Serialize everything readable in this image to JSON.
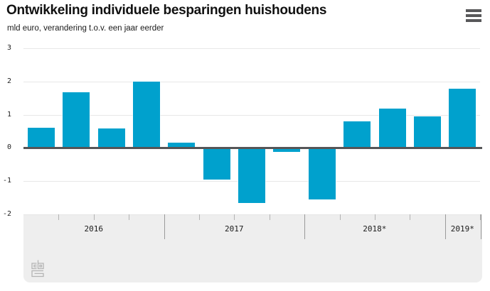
{
  "header": {
    "title": "Ontwikkeling individuele besparingen huishoudens",
    "subtitle": "mld euro, verandering t.o.v. een jaar eerder"
  },
  "icons": {
    "menu": "hamburger-icon",
    "footer_logo": "cbs-logo"
  },
  "chart_data": {
    "type": "bar",
    "title": "Ontwikkeling individuele besparingen huishoudens",
    "subtitle": "mld euro, verandering t.o.v. een jaar eerder",
    "unit": "mld euro",
    "categories": [
      "2016 Q1",
      "2016 Q2",
      "2016 Q3",
      "2016 Q4",
      "2017 Q1",
      "2017 Q2",
      "2017 Q3",
      "2017 Q4",
      "2018 Q1",
      "2018 Q2",
      "2018 Q3",
      "2018 Q4",
      "2019 Q1"
    ],
    "values": [
      0.6,
      1.68,
      0.58,
      2.0,
      0.15,
      -0.93,
      -1.62,
      -0.08,
      -1.52,
      0.8,
      1.19,
      0.95,
      1.78
    ],
    "x_sections": [
      {
        "label": "2016",
        "quarters": 4
      },
      {
        "label": "2017",
        "quarters": 4
      },
      {
        "label": "2018*",
        "quarters": 4
      },
      {
        "label": "2019*",
        "quarters": 1
      }
    ],
    "xlabel": "",
    "ylabel": "",
    "ylim": [
      -2,
      3
    ],
    "yticks": [
      3,
      2,
      1,
      0,
      -1,
      -2
    ],
    "grid": true,
    "legend_position": "none",
    "colors": {
      "bar": "#00a1cd",
      "zero_line": "#555557",
      "gridline": "#e7e7e7",
      "band_bg": "#eeeeee",
      "quarter_tick": "#b3b3b3",
      "year_divider": "#9a9a9a",
      "menu_icon": "#58585a",
      "logo": "#b4b4b4"
    }
  }
}
